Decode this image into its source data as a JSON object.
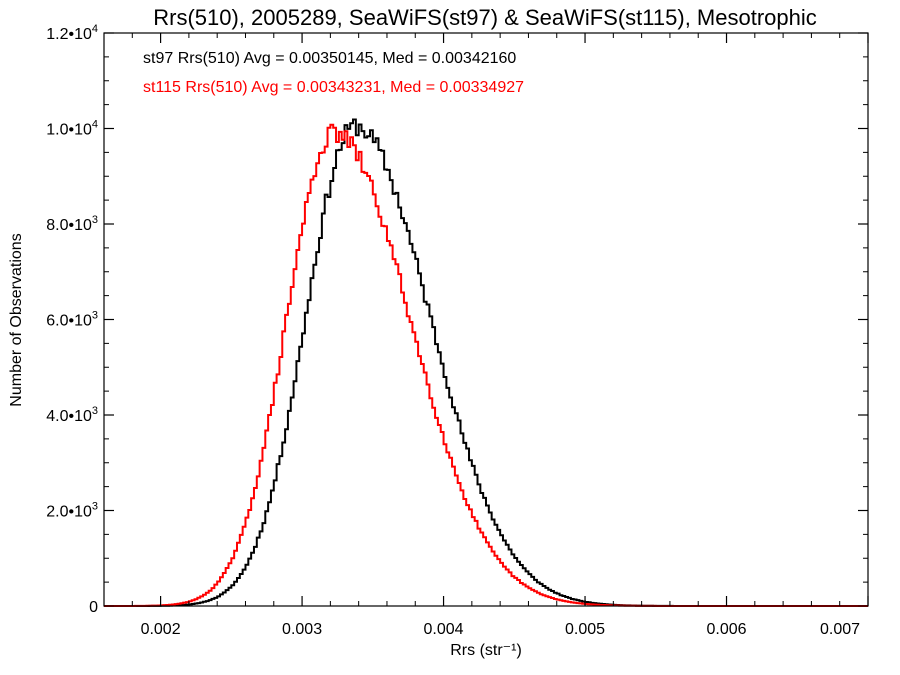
{
  "chart_data": {
    "type": "line",
    "step": true,
    "title": "Rrs(510), 2005289, SeaWiFS(st97) & SeaWiFS(st115), Mesotrophic",
    "xlabel": "Rrs (str⁻¹)",
    "ylabel": "Number of Observations",
    "xlim": [
      0.0016,
      0.007
    ],
    "ylim": [
      0,
      12000
    ],
    "xticks": [
      {
        "value": 0.002,
        "label": "0.002"
      },
      {
        "value": 0.003,
        "label": "0.003"
      },
      {
        "value": 0.004,
        "label": "0.004"
      },
      {
        "value": 0.005,
        "label": "0.005"
      },
      {
        "value": 0.006,
        "label": "0.006"
      },
      {
        "value": 0.007,
        "label": "0.007"
      }
    ],
    "yticks": [
      {
        "value": 0,
        "mant": "0",
        "exp": ""
      },
      {
        "value": 2000,
        "mant": "2.0•10",
        "exp": "3"
      },
      {
        "value": 4000,
        "mant": "4.0•10",
        "exp": "3"
      },
      {
        "value": 6000,
        "mant": "6.0•10",
        "exp": "3"
      },
      {
        "value": 8000,
        "mant": "8.0•10",
        "exp": "3"
      },
      {
        "value": 10000,
        "mant": "1.0•10",
        "exp": "4"
      },
      {
        "value": 12000,
        "mant": "1.2•10",
        "exp": "4"
      }
    ],
    "grid": false,
    "legend_position": "top-left",
    "series": [
      {
        "name": "st97",
        "color": "#000000",
        "annotation": "st97 Rrs(510) Avg = 0.00350145, Med = 0.00342160",
        "peak_x": 0.003373,
        "peak_y": 10050,
        "sigma_left": 0.000345,
        "sigma_right": 0.00053,
        "tail_level": 0,
        "noise_seed": 11,
        "noise_amp": 0.02,
        "x": [
          0.0016,
          0.002,
          0.0025,
          0.0028,
          0.003,
          0.0031,
          0.0032,
          0.0033,
          0.0034,
          0.0035,
          0.0036,
          0.0037,
          0.0038,
          0.0039,
          0.004,
          0.0041,
          0.0042,
          0.0043,
          0.0045,
          0.0047,
          0.005,
          0.0055,
          0.006,
          0.0065,
          0.007
        ],
        "y": [
          150,
          520,
          2230,
          5300,
          7700,
          8700,
          9550,
          9900,
          10000,
          9700,
          9250,
          8650,
          7800,
          6800,
          6000,
          5050,
          4400,
          3650,
          2500,
          1650,
          920,
          410,
          150,
          50,
          15
        ]
      },
      {
        "name": "st115",
        "color": "#ff0000",
        "annotation": "st115 Rrs(510) Avg = 0.00343231, Med = 0.00334927",
        "peak_x": 0.003225,
        "peak_y": 9900,
        "sigma_left": 0.000335,
        "sigma_right": 0.00054,
        "tail_level": 0,
        "noise_seed": 29,
        "noise_amp": 0.02,
        "x": [
          0.0016,
          0.002,
          0.0025,
          0.0028,
          0.003,
          0.0031,
          0.0032,
          0.0033,
          0.0034,
          0.0035,
          0.0036,
          0.0037,
          0.0038,
          0.0039,
          0.004,
          0.0041,
          0.0042,
          0.0043,
          0.0045,
          0.0047,
          0.005,
          0.0055,
          0.006,
          0.0065,
          0.007
        ],
        "y": [
          200,
          700,
          3000,
          6300,
          8600,
          9500,
          9800,
          9800,
          9550,
          9100,
          8400,
          7600,
          6650,
          6000,
          5300,
          4500,
          3900,
          3300,
          2200,
          1500,
          820,
          370,
          130,
          40,
          15
        ]
      }
    ]
  }
}
